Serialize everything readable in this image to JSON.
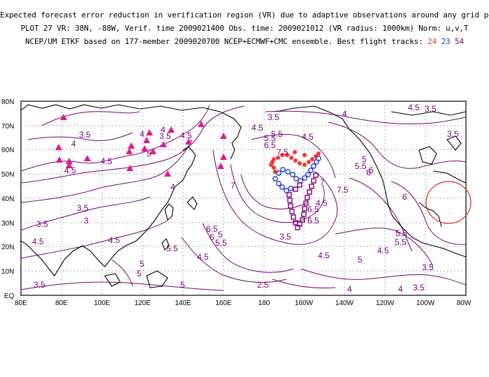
{
  "header": {
    "line1": "Expected forecast error reduction in verification region (VR) due to adaptive observations around any grid point.",
    "line2": "PLOT 27 VR: 38N, -88W, Verif. time 2009021400 Obs. time: 2009021012 (VR radius: 1000km) Norm: u,v,T",
    "line3_prefix": "NCEP/UM ETKF based on 177-member 2009020700 NCEP+ECMWF+CMC ensemble. Best flight tracks:",
    "track_a": "24",
    "track_b": "23",
    "track_c": "54"
  },
  "axes": {
    "lat_labels": [
      "80N",
      "70N",
      "60N",
      "50N",
      "40N",
      "30N",
      "20N",
      "10N",
      "EQ"
    ],
    "lon_labels": [
      "80E",
      "80E",
      "100E",
      "120E",
      "140E",
      "160E",
      "180",
      "160W",
      "140W",
      "120W",
      "100W",
      "80W"
    ]
  },
  "contour_labels": [
    {
      "t": "3.5",
      "c": "a"
    },
    {
      "t": "4",
      "c": "a"
    },
    {
      "t": "4.5",
      "c": "a"
    },
    {
      "t": "4.5",
      "c": "a"
    },
    {
      "t": "3.5",
      "c": "a"
    },
    {
      "t": "4",
      "c": "a"
    },
    {
      "t": "4.5",
      "c": "a"
    },
    {
      "t": "4.5",
      "c": "a"
    },
    {
      "t": "4",
      "c": "a"
    },
    {
      "t": "5",
      "c": "a"
    },
    {
      "t": "5.5",
      "c": "a"
    },
    {
      "t": "3.5",
      "c": "a"
    },
    {
      "t": "4",
      "c": "a"
    },
    {
      "t": "5.5",
      "c": "a"
    },
    {
      "t": "4.5",
      "c": "a"
    },
    {
      "t": "4.5",
      "c": "a"
    },
    {
      "t": "6.5",
      "c": "a"
    },
    {
      "t": "7.5",
      "c": "a"
    },
    {
      "t": "7",
      "c": "a"
    },
    {
      "t": "5",
      "c": "a"
    },
    {
      "t": "5.5",
      "c": "a"
    },
    {
      "t": "6",
      "c": "a"
    },
    {
      "t": "3.5",
      "c": "a"
    },
    {
      "t": "3",
      "c": "a"
    },
    {
      "t": "7.5",
      "c": "a"
    },
    {
      "t": "6",
      "c": "a"
    },
    {
      "t": "6.5",
      "c": "a"
    },
    {
      "t": "7",
      "c": "a"
    },
    {
      "t": "6.5",
      "c": "a"
    },
    {
      "t": "6",
      "c": "a"
    },
    {
      "t": "5.5",
      "c": "a"
    },
    {
      "t": "5",
      "c": "a"
    },
    {
      "t": "4.5",
      "c": "a"
    },
    {
      "t": "4.5",
      "c": "a"
    },
    {
      "t": "5",
      "c": "a"
    },
    {
      "t": "5.5",
      "c": "a"
    },
    {
      "t": "5",
      "c": "a"
    },
    {
      "t": "4.5",
      "c": "a"
    },
    {
      "t": "6.5",
      "c": "a"
    },
    {
      "t": "3.5",
      "c": "a"
    },
    {
      "t": "5.5",
      "c": "a"
    },
    {
      "t": "5",
      "c": "a"
    },
    {
      "t": "4.5",
      "c": "a"
    },
    {
      "t": "3.5",
      "c": "a"
    },
    {
      "t": "2.5",
      "c": "a"
    },
    {
      "t": "3.5",
      "c": "a"
    },
    {
      "t": "3.5",
      "c": "a"
    },
    {
      "t": "4",
      "c": "a"
    },
    {
      "t": "4.5",
      "c": "a"
    },
    {
      "t": "3.5",
      "c": "a"
    },
    {
      "t": "6",
      "c": "a"
    },
    {
      "t": "5.5",
      "c": "a"
    },
    {
      "t": "4",
      "c": "a"
    },
    {
      "t": "3.5",
      "c": "a"
    },
    {
      "t": "3.5",
      "c": "a"
    },
    {
      "t": "4",
      "c": "a"
    },
    {
      "t": "4.5",
      "c": "a"
    },
    {
      "t": "5",
      "c": "a"
    }
  ],
  "colors": {
    "contour": "#7a007a",
    "coast": "#000000",
    "grid": "#8a8a8a",
    "triangle": "#e0198c",
    "track_red": "#ff3030",
    "track_blue": "#1a34d8",
    "track_purple": "#7a007a",
    "vr_circle": "#e03020"
  }
}
